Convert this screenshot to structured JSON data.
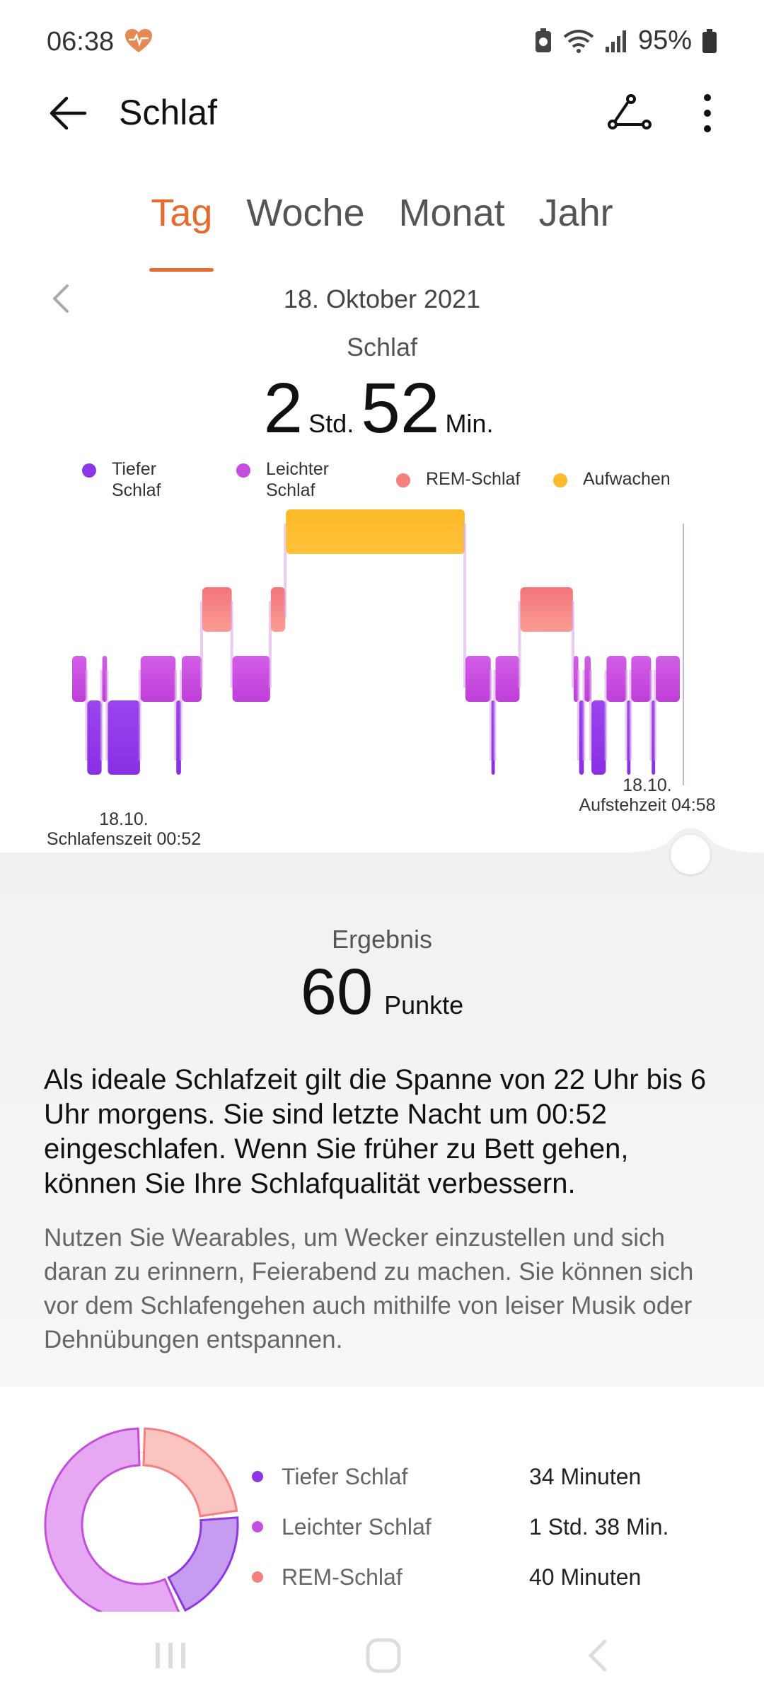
{
  "status": {
    "time": "06:38",
    "battery": "95%"
  },
  "app": {
    "title": "Schlaf"
  },
  "tabs": [
    {
      "label": "Tag",
      "active": true
    },
    {
      "label": "Woche",
      "active": false
    },
    {
      "label": "Monat",
      "active": false
    },
    {
      "label": "Jahr",
      "active": false
    }
  ],
  "date": "18. Oktober 2021",
  "sleep": {
    "label": "Schlaf",
    "hours": "2",
    "hours_unit": "Std.",
    "minutes": "52",
    "minutes_unit": "Min."
  },
  "legend": [
    {
      "label": "Tiefer Schlaf",
      "line1": "Tiefer",
      "line2": "Schlaf",
      "color": "#8e35e6"
    },
    {
      "label": "Leichter Schlaf",
      "line1": "Leichter",
      "line2": "Schlaf",
      "color": "#c54ede"
    },
    {
      "label": "REM-Schlaf",
      "line1": "REM-Schlaf",
      "line2": "",
      "color": "#f67f7f"
    },
    {
      "label": "Aufwachen",
      "line1": "Aufwachen",
      "line2": "",
      "color": "#fbbb2c"
    }
  ],
  "chart_data": {
    "type": "hypnogram",
    "start_label_date": "18.10.",
    "start_label": "Schlafenszeit 00:52",
    "end_label_date": "18.10.",
    "end_label": "Aufstehzeit 04:58",
    "levels": [
      "Tiefer Schlaf",
      "Leichter Schlaf",
      "REM-Schlaf",
      "Aufwachen"
    ],
    "segments": [
      {
        "stage": 1,
        "width": 22
      },
      {
        "stage": 0,
        "width": 22
      },
      {
        "stage": 1,
        "width": 8
      },
      {
        "stage": 0,
        "width": 48
      },
      {
        "stage": 1,
        "width": 52
      },
      {
        "stage": 0,
        "width": 8
      },
      {
        "stage": 1,
        "width": 30
      },
      {
        "stage": 2,
        "width": 44
      },
      {
        "stage": 1,
        "width": 56
      },
      {
        "stage": 2,
        "width": 22
      },
      {
        "stage": 3,
        "width": 262
      },
      {
        "stage": 1,
        "width": 38
      },
      {
        "stage": 0,
        "width": 6
      },
      {
        "stage": 1,
        "width": 36
      },
      {
        "stage": 2,
        "width": 78
      },
      {
        "stage": 1,
        "width": 8
      },
      {
        "stage": 0,
        "width": 8
      },
      {
        "stage": 1,
        "width": 10
      },
      {
        "stage": 0,
        "width": 22
      },
      {
        "stage": 1,
        "width": 30
      },
      {
        "stage": 0,
        "width": 6
      },
      {
        "stage": 1,
        "width": 30
      },
      {
        "stage": 0,
        "width": 6
      },
      {
        "stage": 1,
        "width": 36
      }
    ]
  },
  "result": {
    "label": "Ergebnis",
    "score": "60",
    "unit": "Punkte"
  },
  "advice": "Als ideale Schlafzeit gilt die Spanne von 22 Uhr bis 6 Uhr morgens. Sie sind letzte Nacht um 00:52 eingeschlafen. Wenn Sie früher zu Bett gehen, können Sie Ihre Schlafqualität verbessern.",
  "tip": "Nutzen Sie Wearables, um Wecker einzustellen und sich daran zu erinnern, Feierabend zu machen. Sie können sich vor dem Schlafengehen auch mithilfe von leiser Musik oder Dehnübungen entspannen.",
  "breakdown": [
    {
      "label": "Tiefer Schlaf",
      "value": "34 Minuten",
      "color": "#8e35e6",
      "minutes": 34
    },
    {
      "label": "Leichter Schlaf",
      "value": "1 Std. 38 Min.",
      "color": "#c54ede",
      "minutes": 98
    },
    {
      "label": "REM-Schlaf",
      "value": "40 Minuten",
      "color": "#f67f7f",
      "minutes": 40
    }
  ]
}
